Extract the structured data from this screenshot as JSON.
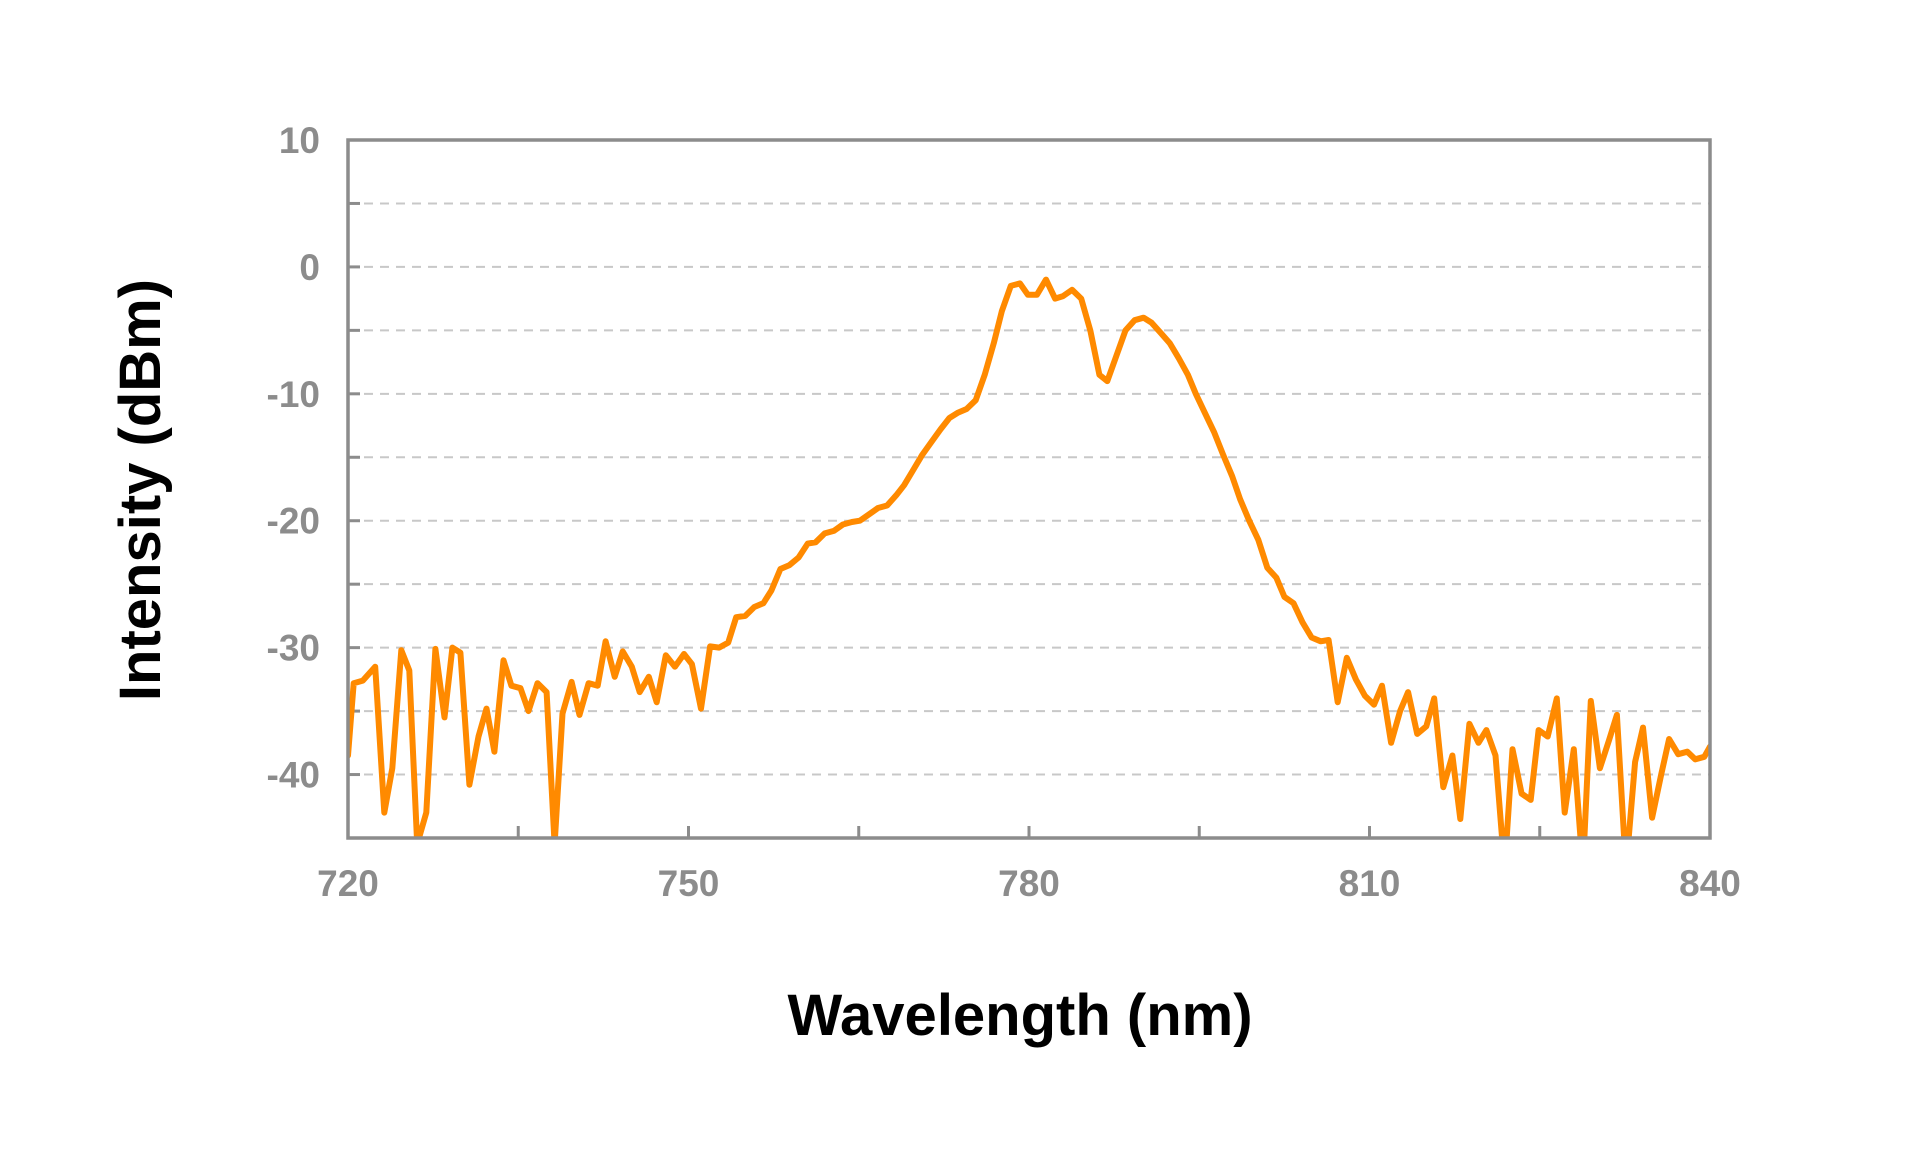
{
  "chart_data": {
    "type": "line",
    "title": "",
    "xlabel": "Wavelength (nm)",
    "ylabel": "Intensity (dBm)",
    "xlim": [
      720,
      840
    ],
    "ylim": [
      -45,
      10
    ],
    "x_ticks": [
      720,
      750,
      780,
      810,
      840
    ],
    "x_tick_labels": [
      "720",
      "750",
      "780",
      "810",
      "840"
    ],
    "y_ticks": [
      10,
      0,
      -10,
      -20,
      -30,
      -40
    ],
    "y_tick_labels": [
      "10",
      "0",
      "-10",
      "-20",
      "-30",
      "-40"
    ],
    "grid": "horizontal dashed every 5 dBm",
    "legend": "none",
    "line_color": "#ff8a00",
    "series": [
      {
        "x": [
          720.0,
          720.5,
          721.3,
          722.4,
          723.2,
          723.9,
          724.7,
          725.4,
          726.1,
          726.9,
          727.7,
          728.5,
          729.2,
          729.9,
          730.7,
          731.5,
          732.2,
          732.9,
          733.7,
          734.4,
          735.2,
          735.9,
          736.7,
          737.5,
          738.2,
          738.9,
          739.7,
          740.4,
          741.2,
          742.0,
          742.7,
          743.5,
          744.2,
          745.0,
          745.7,
          746.5,
          747.2,
          748.0,
          748.8,
          749.6,
          750.3,
          751.1,
          751.9,
          752.7,
          753.5,
          754.2,
          755.0,
          755.8,
          756.6,
          757.3,
          758.1,
          758.9,
          759.7,
          760.5,
          761.2,
          762.0,
          762.8,
          763.6,
          764.4,
          765.1,
          765.9,
          766.7,
          767.5,
          768.3,
          769.0,
          769.8,
          770.6,
          771.4,
          772.2,
          773.0,
          773.7,
          774.5,
          775.3,
          776.1,
          776.9,
          777.6,
          778.4,
          779.2,
          779.9,
          780.7,
          781.5,
          782.3,
          783.0,
          783.8,
          784.6,
          785.4,
          786.2,
          786.9,
          787.7,
          788.5,
          789.3,
          790.1,
          790.8,
          791.6,
          792.4,
          793.2,
          794.0,
          794.7,
          795.5,
          796.3,
          797.1,
          797.9,
          798.6,
          799.4,
          800.2,
          801.0,
          801.8,
          802.5,
          803.3,
          804.1,
          804.9,
          805.7,
          806.4,
          807.2,
          808.0,
          808.8,
          809.6,
          810.4,
          811.1,
          811.9,
          812.7,
          813.4,
          814.2,
          815.0,
          815.7,
          816.5,
          817.3,
          818.0,
          818.8,
          819.6,
          820.3,
          821.1,
          821.9,
          822.6,
          823.4,
          824.2,
          824.9,
          825.7,
          826.5,
          827.2,
          828.0,
          828.8,
          829.5,
          830.3,
          831.1,
          831.8,
          832.6,
          833.4,
          834.1,
          834.9,
          835.7,
          836.4,
          837.2,
          838.0,
          838.7,
          839.5,
          840.0
        ],
        "y": [
          -38.5,
          -32.8,
          -32.6,
          -31.5,
          -43.0,
          -39.5,
          -30.2,
          -31.8,
          -45.5,
          -43.0,
          -30.1,
          -35.5,
          -30.0,
          -30.4,
          -40.8,
          -37.0,
          -34.8,
          -38.2,
          -31.0,
          -33.0,
          -33.2,
          -35.0,
          -32.8,
          -33.5,
          -45.5,
          -35.2,
          -32.7,
          -35.3,
          -32.8,
          -33.0,
          -29.5,
          -32.3,
          -30.3,
          -31.5,
          -33.5,
          -32.3,
          -34.3,
          -30.6,
          -31.5,
          -30.5,
          -31.3,
          -34.8,
          -29.9,
          -30.0,
          -29.6,
          -27.6,
          -27.5,
          -26.8,
          -26.5,
          -25.5,
          -23.8,
          -23.5,
          -22.9,
          -21.8,
          -21.7,
          -21.0,
          -20.8,
          -20.3,
          -20.1,
          -20.0,
          -19.5,
          -19.0,
          -18.8,
          -18.0,
          -17.2,
          -16.0,
          -14.8,
          -13.8,
          -12.8,
          -11.9,
          -11.5,
          -11.2,
          -10.5,
          -8.5,
          -6.0,
          -3.5,
          -1.5,
          -1.3,
          -2.2,
          -2.2,
          -1.0,
          -2.5,
          -2.3,
          -1.8,
          -2.5,
          -5.0,
          -8.5,
          -9.0,
          -7.0,
          -5.0,
          -4.2,
          -4.0,
          -4.4,
          -5.2,
          -6.0,
          -7.2,
          -8.5,
          -10.0,
          -11.5,
          -13.0,
          -14.8,
          -16.5,
          -18.3,
          -20.0,
          -21.5,
          -23.7,
          -24.5,
          -26.0,
          -26.5,
          -28.0,
          -29.2,
          -29.5,
          -29.4,
          -34.3,
          -30.8,
          -32.5,
          -33.8,
          -34.5,
          -33.0,
          -37.5,
          -35.0,
          -33.5,
          -36.8,
          -36.2,
          -34.0,
          -41.0,
          -38.5,
          -43.5,
          -36.0,
          -37.5,
          -36.5,
          -38.5,
          -47.5,
          -38.0,
          -41.5,
          -42.0,
          -36.5,
          -37.0,
          -34.0,
          -43.0,
          -38.0,
          -47.5,
          -34.2,
          -39.5,
          -37.3,
          -35.3,
          -47.5,
          -39.0,
          -36.3,
          -43.4,
          -40.0,
          -37.2,
          -38.4,
          -38.2,
          -38.8,
          -38.6,
          -37.8
        ]
      }
    ]
  }
}
